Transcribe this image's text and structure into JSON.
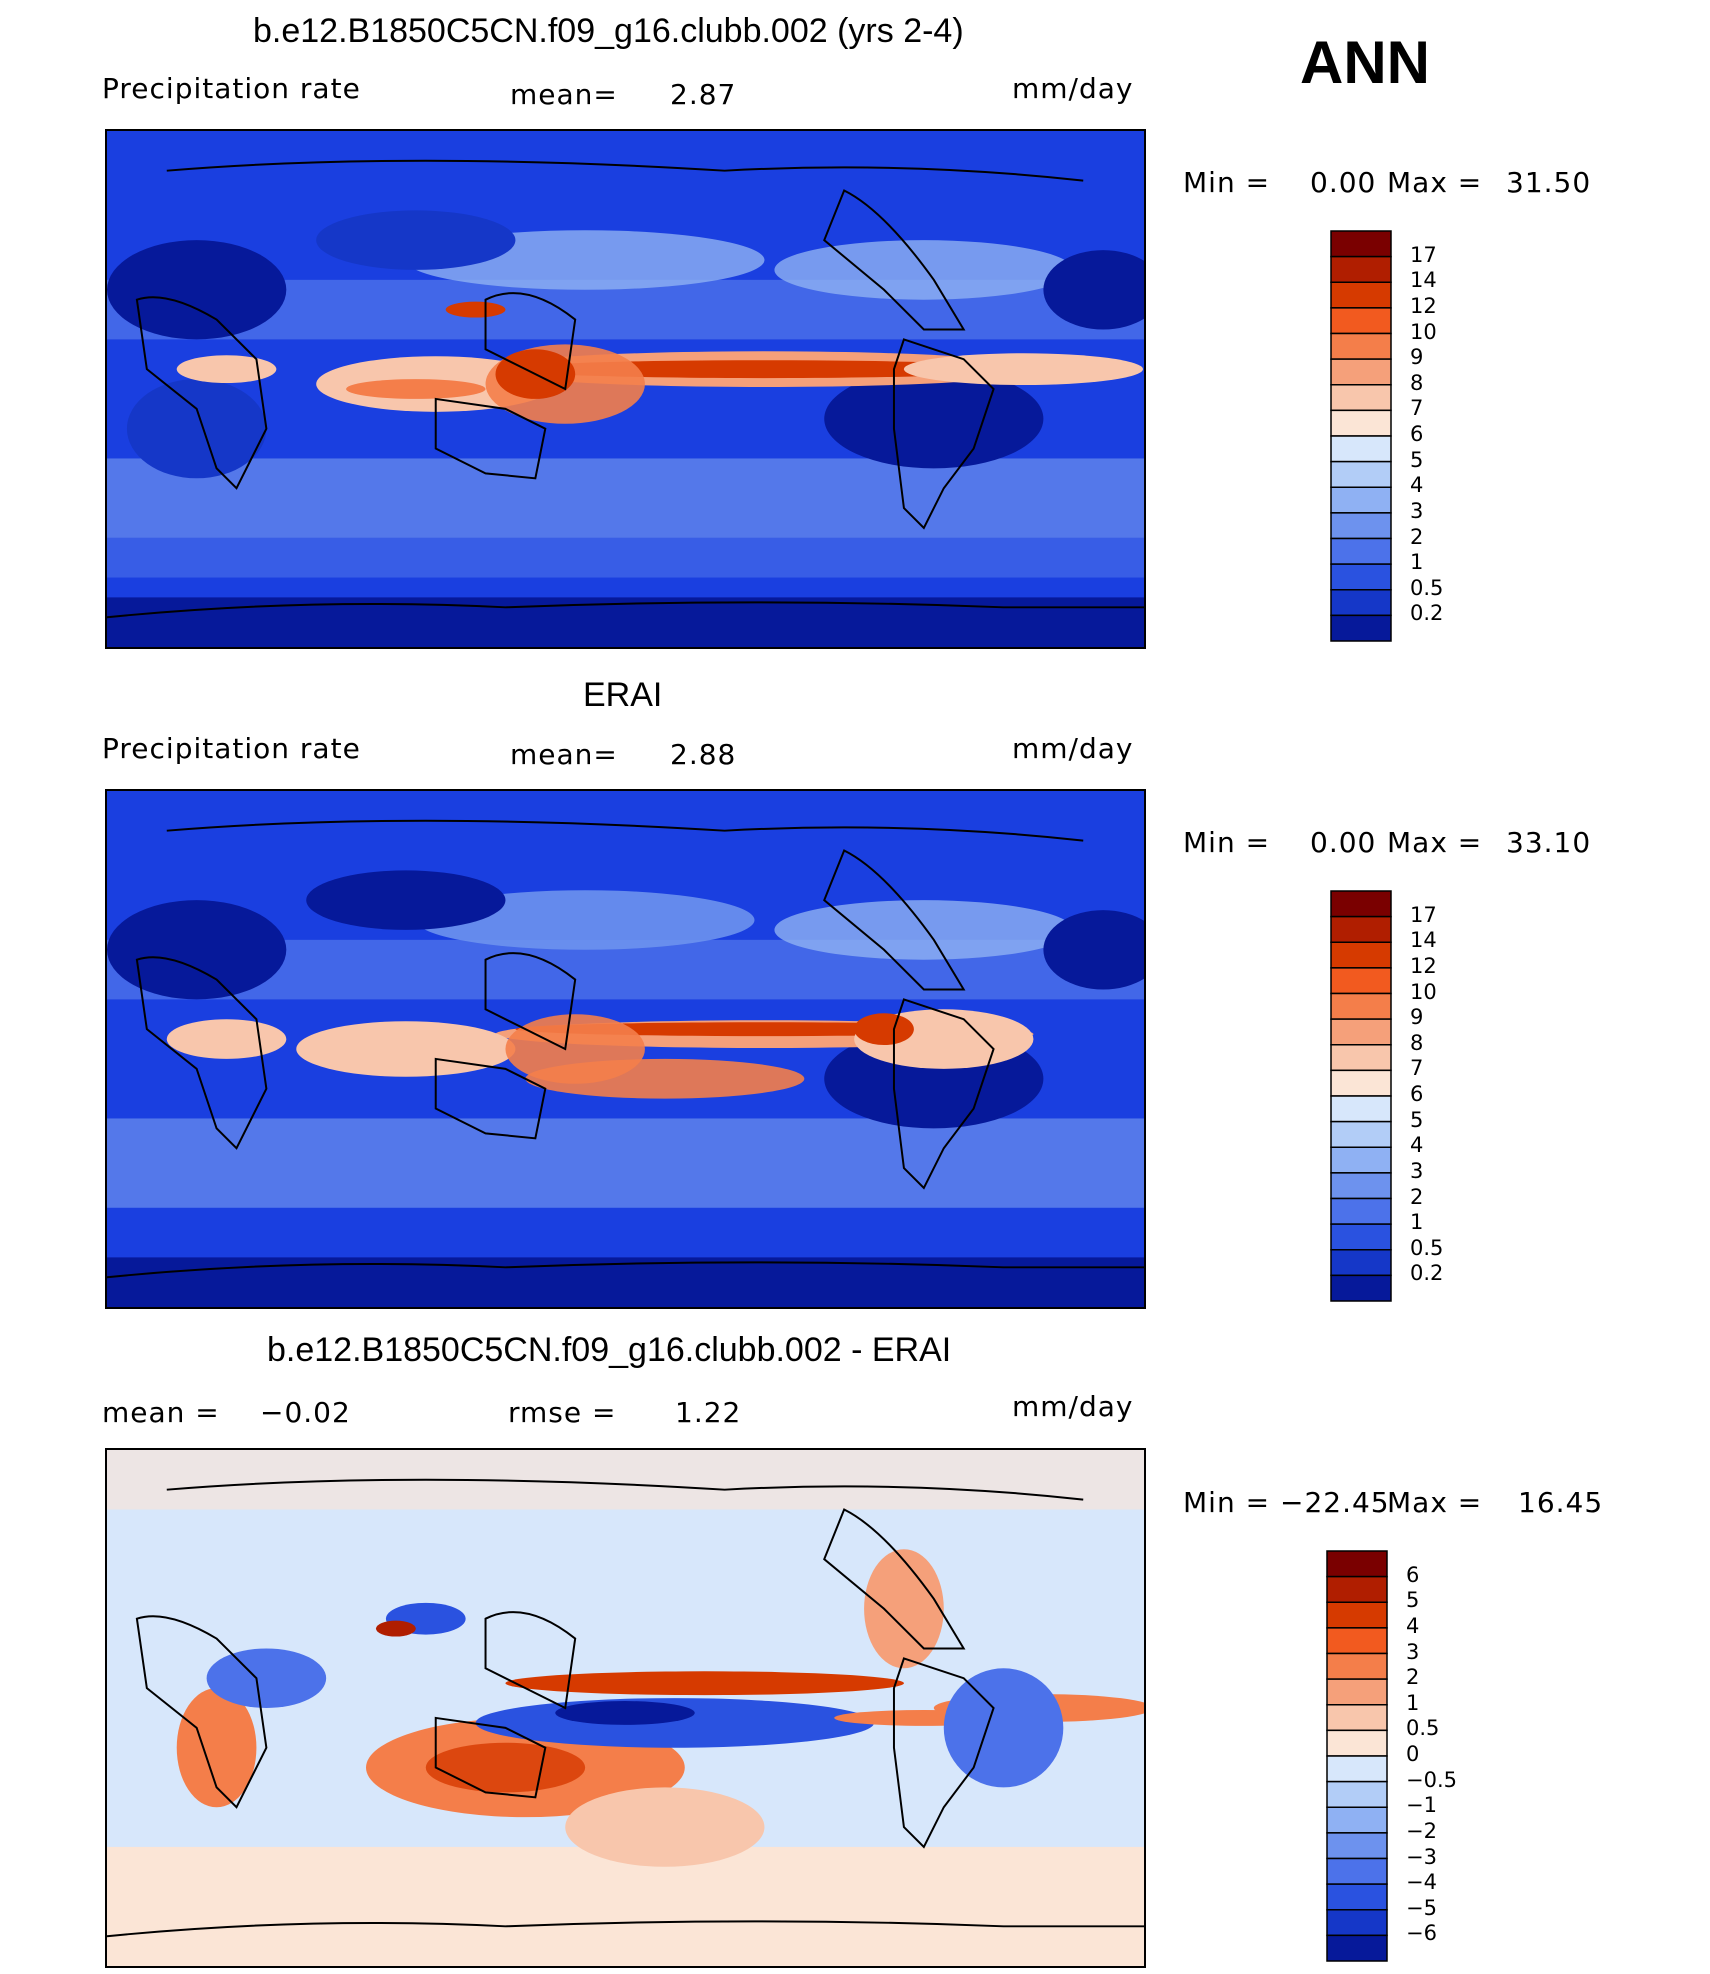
{
  "season": "ANN",
  "panels": [
    {
      "id": "model",
      "title": "b.e12.B1850C5CN.f09_g16.clubb.002 (yrs 2-4)",
      "left_label": "Precipitation  rate",
      "center_label": "mean=",
      "center_value": "2.87",
      "units": "mm/day",
      "minmax": {
        "min_label": "Min  =",
        "min": "0.00",
        "max_label": "Max  =",
        "max": "31.50"
      },
      "colorbar": {
        "ticks": [
          "17",
          "14",
          "12",
          "10",
          "9",
          "8",
          "7",
          "6",
          "5",
          "4",
          "3",
          "2",
          "1",
          "0.5",
          "0.2"
        ],
        "colors": [
          "#7a0000",
          "#b01e00",
          "#d63a00",
          "#f25a1f",
          "#f47e4a",
          "#f5a07a",
          "#f8c6ac",
          "#fbe5d6",
          "#d7e7fb",
          "#b2cdf7",
          "#8fb1f3",
          "#6d92ee",
          "#4c72ea",
          "#2a52e0",
          "#1537c8",
          "#06199a"
        ]
      }
    },
    {
      "id": "obs",
      "title": "ERAI",
      "left_label": "Precipitation  rate",
      "center_label": "mean=",
      "center_value": "2.88",
      "units": "mm/day",
      "minmax": {
        "min_label": "Min  =",
        "min": "0.00",
        "max_label": "Max  =",
        "max": "33.10"
      },
      "colorbar": {
        "ticks": [
          "17",
          "14",
          "12",
          "10",
          "9",
          "8",
          "7",
          "6",
          "5",
          "4",
          "3",
          "2",
          "1",
          "0.5",
          "0.2"
        ],
        "colors": [
          "#7a0000",
          "#b01e00",
          "#d63a00",
          "#f25a1f",
          "#f47e4a",
          "#f5a07a",
          "#f8c6ac",
          "#fbe5d6",
          "#d7e7fb",
          "#b2cdf7",
          "#8fb1f3",
          "#6d92ee",
          "#4c72ea",
          "#2a52e0",
          "#1537c8",
          "#06199a"
        ]
      }
    },
    {
      "id": "diff",
      "title": "b.e12.B1850C5CN.f09_g16.clubb.002 - ERAI",
      "left_label": "mean  =",
      "left_value": "−0.02",
      "center_label": "rmse  =",
      "center_value": "1.22",
      "units": "mm/day",
      "minmax": {
        "min_label": "Min  =",
        "min": "−22.45",
        "max_label": "Max  =",
        "max": "16.45"
      },
      "colorbar": {
        "ticks": [
          "6",
          "5",
          "4",
          "3",
          "2",
          "1",
          "0.5",
          "0",
          "−0.5",
          "−1",
          "−2",
          "−3",
          "−4",
          "−5",
          "−6"
        ],
        "colors": [
          "#7a0000",
          "#b01e00",
          "#d63a00",
          "#f25a1f",
          "#f47e4a",
          "#f5a07a",
          "#f8c6ac",
          "#fbe5d6",
          "#d7e7fb",
          "#b2cdf7",
          "#8fb1f3",
          "#6d92ee",
          "#4c72ea",
          "#2a52e0",
          "#1537c8",
          "#06199a"
        ]
      }
    }
  ]
}
